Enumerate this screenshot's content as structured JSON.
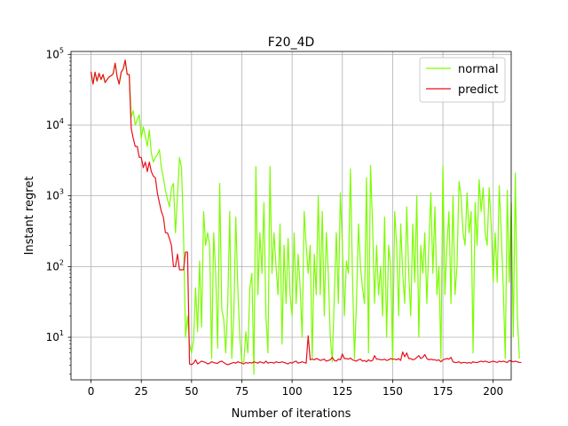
{
  "chart_data": {
    "type": "line",
    "title": "F20_4D",
    "xlabel": "Number of iterations",
    "ylabel": "Instant regret",
    "yscale": "log",
    "xlim": [
      -9.95,
      208.95
    ],
    "ylim": [
      2.5,
      110000
    ],
    "xticks": [
      0,
      25,
      50,
      75,
      100,
      125,
      150,
      175,
      200
    ],
    "xtick_labels": [
      "0",
      "25",
      "50",
      "75",
      "100",
      "125",
      "150",
      "175",
      "200"
    ],
    "yticks": [
      10,
      100,
      1000,
      10000,
      100000
    ],
    "ytick_labels": [
      {
        "base": "10",
        "exp": "1"
      },
      {
        "base": "10",
        "exp": "2"
      },
      {
        "base": "10",
        "exp": "3"
      },
      {
        "base": "10",
        "exp": "4"
      },
      {
        "base": "10",
        "exp": "5"
      }
    ],
    "grid": true,
    "legend_position": "top-right",
    "series": [
      {
        "name": "normal",
        "color": "#7cfc00",
        "values": [
          57000,
          38000,
          56000,
          42000,
          54000,
          44000,
          52000,
          40000,
          44000,
          48000,
          50000,
          53000,
          75000,
          48000,
          38000,
          56000,
          62000,
          83000,
          52000,
          52000,
          13000,
          16000,
          10000,
          12000,
          14000,
          6500,
          9500,
          7000,
          5000,
          8500,
          4000,
          3000,
          3500,
          3800,
          4500,
          2500,
          1800,
          1200,
          900,
          700,
          1300,
          1500,
          300,
          1000,
          3500,
          2500,
          300,
          10,
          20,
          8,
          6,
          9,
          50,
          12,
          120,
          14,
          600,
          200,
          300,
          200,
          5,
          300,
          80,
          7,
          1500,
          25,
          18,
          6,
          30,
          600,
          5,
          20,
          500,
          50,
          10,
          4.5,
          4.5,
          12,
          6,
          50,
          80,
          3,
          2600,
          40,
          300,
          80,
          800,
          20,
          6,
          2600,
          80,
          300,
          100,
          40,
          400,
          8,
          200,
          30,
          250,
          40,
          20,
          300,
          30,
          150,
          50,
          10,
          600,
          200,
          80,
          200,
          5,
          150,
          40,
          1000,
          40,
          600,
          20,
          300,
          80,
          10,
          4.5,
          40,
          300,
          30,
          1100,
          200,
          20,
          120,
          80,
          2400,
          80,
          5,
          30,
          400,
          100,
          50,
          30,
          1800,
          6,
          2700,
          400,
          30,
          200,
          40,
          100,
          20,
          500,
          10,
          200,
          100,
          4.5,
          600,
          200,
          20,
          400,
          80,
          30,
          700,
          80,
          20,
          400,
          60,
          1000,
          10,
          200,
          80,
          300,
          30,
          200,
          1100,
          80,
          700,
          40,
          100,
          5,
          2700,
          40,
          200,
          600,
          30,
          1000,
          40,
          100,
          1600,
          1000,
          300,
          200,
          1100,
          300,
          600,
          6,
          800,
          200,
          1700,
          600,
          1300,
          300,
          200,
          1300,
          400,
          60,
          300,
          60,
          1400,
          300,
          50,
          5,
          1200,
          60,
          800,
          10,
          2100,
          20,
          5
        ]
      },
      {
        "name": "predict",
        "color": "#e8101e",
        "values": [
          57000,
          38000,
          56000,
          42000,
          54000,
          44000,
          52000,
          40000,
          44000,
          48000,
          50000,
          53000,
          75000,
          48000,
          38000,
          56000,
          62000,
          83000,
          52000,
          52000,
          9000,
          6500,
          5000,
          5000,
          3500,
          3500,
          2500,
          3000,
          2200,
          3000,
          2200,
          1900,
          1800,
          1100,
          800,
          600,
          500,
          300,
          300,
          250,
          200,
          100,
          100,
          150,
          90,
          90,
          90,
          160,
          160,
          4.2,
          4.1,
          4.3,
          4.8,
          4.2,
          4.4,
          4.6,
          4.5,
          4.4,
          4.2,
          4.3,
          4.5,
          4.4,
          4.3,
          4.3,
          4.5,
          4.6,
          4.4,
          4.2,
          4.1,
          4.2,
          4.3,
          4.4,
          4.3,
          4.5,
          4.4,
          4.3,
          4.2,
          4.4,
          4.3,
          4.4,
          4.3,
          4.5,
          4.4,
          4.3,
          4.5,
          4.4,
          4.3,
          4.6,
          4.3,
          4.4,
          4.4,
          4.3,
          4.5,
          4.4,
          4.4,
          4.5,
          4.4,
          4.3,
          4.2,
          4.4,
          4.3,
          4.5,
          4.6,
          4.3,
          4.4,
          4.5,
          4.4,
          4.3,
          10.5,
          4.8,
          4.9,
          4.8,
          5,
          4.9,
          4.7,
          4.8,
          4.9,
          4.6,
          4.7,
          4.8,
          5.2,
          4.7,
          4.6,
          4.9,
          4.8,
          5.8,
          5,
          5,
          4.9,
          5.1,
          4.8,
          4.7,
          4.6,
          4.8,
          4.9,
          4.6,
          4.7,
          4.5,
          4.8,
          4.6,
          4.7,
          5.5,
          4.9,
          4.9,
          4.8,
          4.8,
          4.9,
          4.7,
          4.8,
          5,
          4.9,
          4.9,
          4.8,
          5,
          4.7,
          6.2,
          5.3,
          6,
          5,
          5,
          4.8,
          4.9,
          5.2,
          5.5,
          5,
          5.2,
          5.7,
          5,
          4.8,
          4.9,
          4.8,
          4.8,
          4.7,
          4.8,
          4.5,
          4.8,
          4.9,
          5,
          4.9,
          5.2,
          4.5,
          4.4,
          4.4,
          4.5,
          4.3,
          4.4,
          4.4,
          4.3,
          4.4,
          4.3,
          4.5,
          4.4,
          4.4,
          4.5,
          4.6,
          4.5,
          4.6,
          4.5,
          4.4,
          4.5,
          4.6,
          4.5,
          4.4,
          4.6,
          4.5,
          4.6,
          4.5,
          4.4,
          4.7,
          4.6,
          4.5,
          4.6,
          4.5,
          4.4,
          4.4
        ]
      }
    ]
  }
}
